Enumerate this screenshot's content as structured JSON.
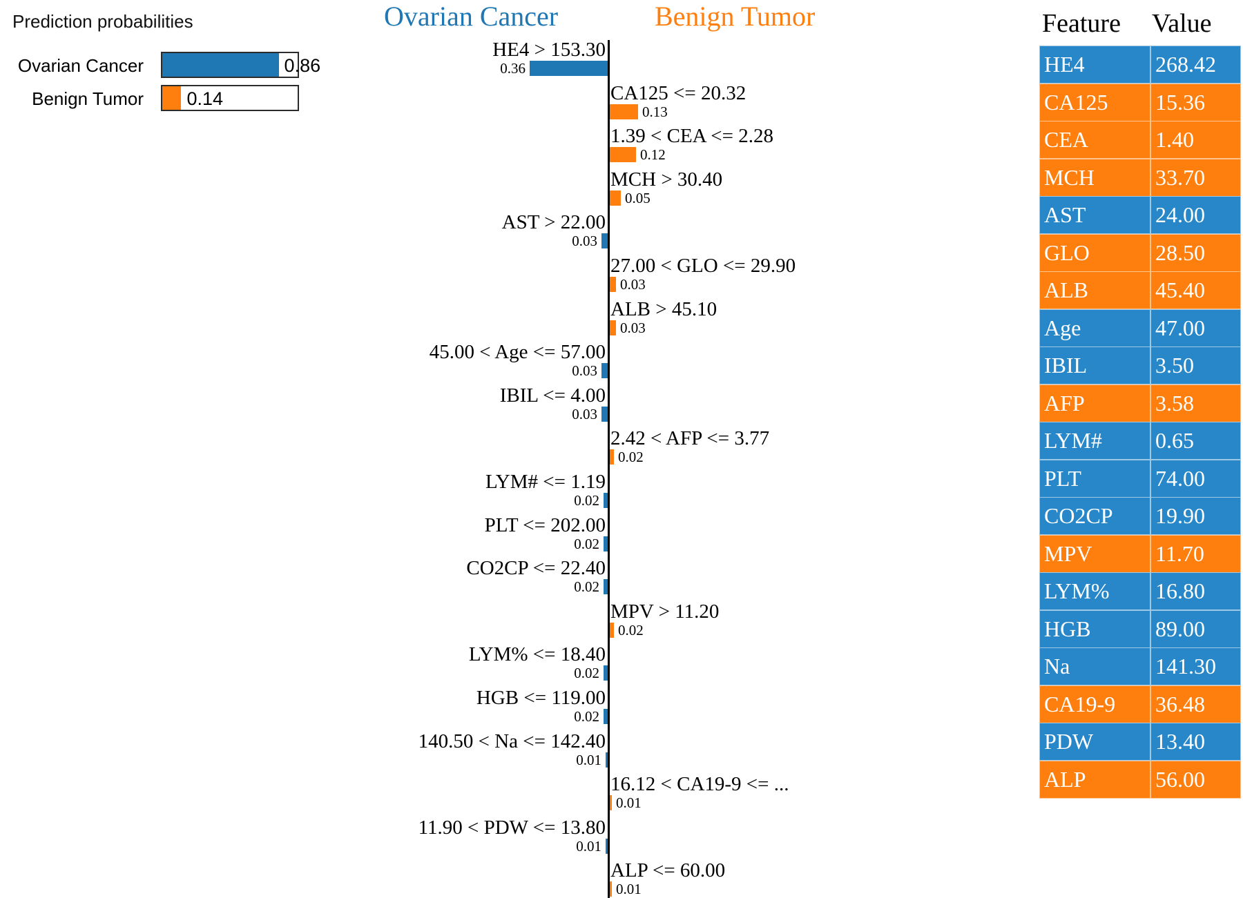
{
  "colors": {
    "blue": "#1f77b4",
    "orange": "#ff7f0e",
    "table_blue": "#2787c8",
    "table_orange": "#ff7f0e",
    "axis_line": "#000000"
  },
  "prediction_panel": {
    "title": "Prediction probabilities",
    "classes": [
      {
        "label": "Ovarian Cancer",
        "prob": 0.86,
        "value_label": "0.86",
        "color": "blue"
      },
      {
        "label": "Benign Tumor",
        "prob": 0.14,
        "value_label": "0.14",
        "color": "orange"
      }
    ]
  },
  "contribution_chart": {
    "left_header": "Ovarian Cancer",
    "right_header": "Benign Tumor",
    "features": [
      {
        "condition": "HE4 > 153.30",
        "weight": 0.36,
        "weight_label": "0.36",
        "side": "left",
        "class": "Ovarian Cancer"
      },
      {
        "condition": "CA125 <= 20.32",
        "weight": 0.13,
        "weight_label": "0.13",
        "side": "right",
        "class": "Benign Tumor"
      },
      {
        "condition": "1.39 < CEA <= 2.28",
        "weight": 0.12,
        "weight_label": "0.12",
        "side": "right",
        "class": "Benign Tumor"
      },
      {
        "condition": "MCH > 30.40",
        "weight": 0.05,
        "weight_label": "0.05",
        "side": "right",
        "class": "Benign Tumor"
      },
      {
        "condition": "AST > 22.00",
        "weight": 0.03,
        "weight_label": "0.03",
        "side": "left",
        "class": "Ovarian Cancer"
      },
      {
        "condition": "27.00 < GLO <= 29.90",
        "weight": 0.03,
        "weight_label": "0.03",
        "side": "right",
        "class": "Benign Tumor"
      },
      {
        "condition": "ALB > 45.10",
        "weight": 0.03,
        "weight_label": "0.03",
        "side": "right",
        "class": "Benign Tumor"
      },
      {
        "condition": "45.00 < Age <= 57.00",
        "weight": 0.03,
        "weight_label": "0.03",
        "side": "left",
        "class": "Ovarian Cancer"
      },
      {
        "condition": "IBIL <= 4.00",
        "weight": 0.03,
        "weight_label": "0.03",
        "side": "left",
        "class": "Ovarian Cancer"
      },
      {
        "condition": "2.42 < AFP <= 3.77",
        "weight": 0.02,
        "weight_label": "0.02",
        "side": "right",
        "class": "Benign Tumor"
      },
      {
        "condition": "LYM# <= 1.19",
        "weight": 0.02,
        "weight_label": "0.02",
        "side": "left",
        "class": "Ovarian Cancer"
      },
      {
        "condition": "PLT <= 202.00",
        "weight": 0.02,
        "weight_label": "0.02",
        "side": "left",
        "class": "Ovarian Cancer"
      },
      {
        "condition": "CO2CP <= 22.40",
        "weight": 0.02,
        "weight_label": "0.02",
        "side": "left",
        "class": "Ovarian Cancer"
      },
      {
        "condition": "MPV > 11.20",
        "weight": 0.02,
        "weight_label": "0.02",
        "side": "right",
        "class": "Benign Tumor"
      },
      {
        "condition": "LYM% <= 18.40",
        "weight": 0.02,
        "weight_label": "0.02",
        "side": "left",
        "class": "Ovarian Cancer"
      },
      {
        "condition": "HGB <= 119.00",
        "weight": 0.02,
        "weight_label": "0.02",
        "side": "left",
        "class": "Ovarian Cancer"
      },
      {
        "condition": "140.50 < Na <= 142.40",
        "weight": 0.01,
        "weight_label": "0.01",
        "side": "left",
        "class": "Ovarian Cancer"
      },
      {
        "condition": "16.12 < CA19-9 <= ...",
        "weight": 0.01,
        "weight_label": "0.01",
        "side": "right",
        "class": "Benign Tumor"
      },
      {
        "condition": "11.90 < PDW <= 13.80",
        "weight": 0.01,
        "weight_label": "0.01",
        "side": "left",
        "class": "Ovarian Cancer"
      },
      {
        "condition": "ALP <= 60.00",
        "weight": 0.01,
        "weight_label": "0.01",
        "side": "right",
        "class": "Benign Tumor"
      }
    ]
  },
  "feature_table": {
    "header_feature": "Feature",
    "header_value": "Value",
    "rows": [
      {
        "feature": "HE4",
        "value": "268.42",
        "color": "blue"
      },
      {
        "feature": "CA125",
        "value": "15.36",
        "color": "orange"
      },
      {
        "feature": "CEA",
        "value": "1.40",
        "color": "orange"
      },
      {
        "feature": "MCH",
        "value": "33.70",
        "color": "orange"
      },
      {
        "feature": "AST",
        "value": "24.00",
        "color": "blue"
      },
      {
        "feature": "GLO",
        "value": "28.50",
        "color": "orange"
      },
      {
        "feature": "ALB",
        "value": "45.40",
        "color": "orange"
      },
      {
        "feature": "Age",
        "value": "47.00",
        "color": "blue"
      },
      {
        "feature": "IBIL",
        "value": "3.50",
        "color": "blue"
      },
      {
        "feature": "AFP",
        "value": "3.58",
        "color": "orange"
      },
      {
        "feature": "LYM#",
        "value": "0.65",
        "color": "blue"
      },
      {
        "feature": "PLT",
        "value": "74.00",
        "color": "blue"
      },
      {
        "feature": "CO2CP",
        "value": "19.90",
        "color": "blue"
      },
      {
        "feature": "MPV",
        "value": "11.70",
        "color": "orange"
      },
      {
        "feature": "LYM%",
        "value": "16.80",
        "color": "blue"
      },
      {
        "feature": "HGB",
        "value": "89.00",
        "color": "blue"
      },
      {
        "feature": "Na",
        "value": "141.30",
        "color": "blue"
      },
      {
        "feature": "CA19-9",
        "value": "36.48",
        "color": "orange"
      },
      {
        "feature": "PDW",
        "value": "13.40",
        "color": "blue"
      },
      {
        "feature": "ALP",
        "value": "56.00",
        "color": "orange"
      }
    ]
  },
  "chart_data": [
    {
      "type": "bar",
      "title": "Prediction probabilities",
      "categories": [
        "Ovarian Cancer",
        "Benign Tumor"
      ],
      "values": [
        0.86,
        0.14
      ],
      "colors": [
        "#1f77b4",
        "#ff7f0e"
      ],
      "orientation": "horizontal",
      "xlim": [
        0,
        1
      ]
    },
    {
      "type": "bar",
      "title": "LIME feature contributions (diverging)",
      "left_class": "Ovarian Cancer",
      "right_class": "Benign Tumor",
      "categories": [
        "HE4 > 153.30",
        "CA125 <= 20.32",
        "1.39 < CEA <= 2.28",
        "MCH > 30.40",
        "AST > 22.00",
        "27.00 < GLO <= 29.90",
        "ALB > 45.10",
        "45.00 < Age <= 57.00",
        "IBIL <= 4.00",
        "2.42 < AFP <= 3.77",
        "LYM# <= 1.19",
        "PLT <= 202.00",
        "CO2CP <= 22.40",
        "MPV > 11.20",
        "LYM% <= 18.40",
        "HGB <= 119.00",
        "140.50 < Na <= 142.40",
        "16.12 < CA19-9 <= ...",
        "11.90 < PDW <= 13.80",
        "ALP <= 60.00"
      ],
      "values": [
        -0.36,
        0.13,
        0.12,
        0.05,
        -0.03,
        0.03,
        0.03,
        -0.03,
        -0.03,
        0.02,
        -0.02,
        -0.02,
        -0.02,
        0.02,
        -0.02,
        -0.02,
        -0.01,
        0.01,
        -0.01,
        0.01
      ],
      "value_sign_convention": "negative = Ovarian Cancer (blue, left), positive = Benign Tumor (orange, right)",
      "orientation": "horizontal"
    },
    {
      "type": "table",
      "title": "Feature Value",
      "headers": [
        "Feature",
        "Value"
      ],
      "rows": [
        [
          "HE4",
          "268.42"
        ],
        [
          "CA125",
          "15.36"
        ],
        [
          "CEA",
          "1.40"
        ],
        [
          "MCH",
          "33.70"
        ],
        [
          "AST",
          "24.00"
        ],
        [
          "GLO",
          "28.50"
        ],
        [
          "ALB",
          "45.40"
        ],
        [
          "Age",
          "47.00"
        ],
        [
          "IBIL",
          "3.50"
        ],
        [
          "AFP",
          "3.58"
        ],
        [
          "LYM#",
          "0.65"
        ],
        [
          "PLT",
          "74.00"
        ],
        [
          "CO2CP",
          "19.90"
        ],
        [
          "MPV",
          "11.70"
        ],
        [
          "LYM%",
          "16.80"
        ],
        [
          "HGB",
          "89.00"
        ],
        [
          "Na",
          "141.30"
        ],
        [
          "CA19-9",
          "36.48"
        ],
        [
          "PDW",
          "13.40"
        ],
        [
          "ALP",
          "56.00"
        ]
      ],
      "row_colors": [
        "blue",
        "orange",
        "orange",
        "orange",
        "blue",
        "orange",
        "orange",
        "blue",
        "blue",
        "orange",
        "blue",
        "blue",
        "blue",
        "orange",
        "blue",
        "blue",
        "blue",
        "orange",
        "blue",
        "orange"
      ]
    }
  ]
}
